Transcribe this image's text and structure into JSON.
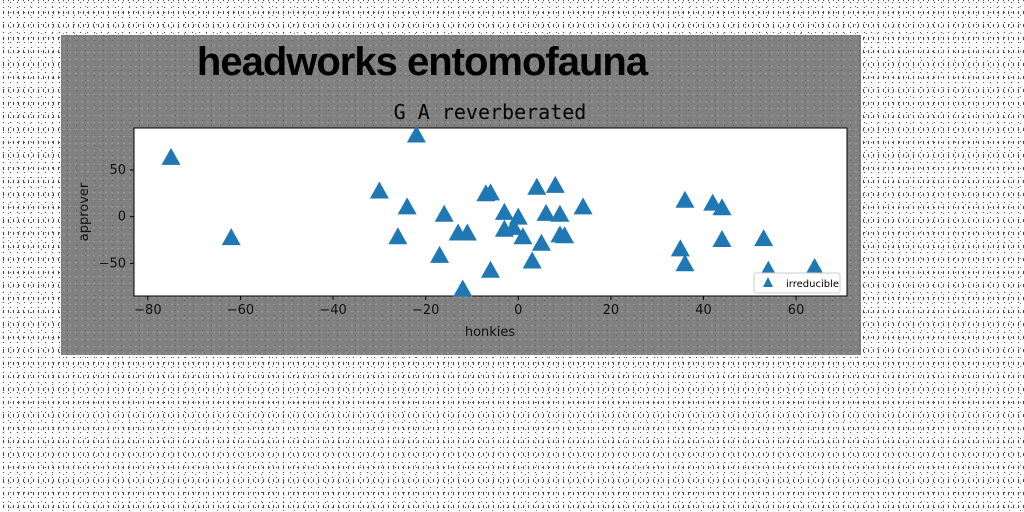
{
  "chart_data": {
    "type": "scatter",
    "suptitle": "headworks entomofauna",
    "title": "G A reverberated",
    "xlabel": "honkies",
    "ylabel": "approver",
    "xlim": [
      -83,
      71
    ],
    "ylim": [
      -85,
      95
    ],
    "xticks": [
      -80,
      -60,
      -40,
      -20,
      0,
      20,
      40,
      60
    ],
    "yticks": [
      -50,
      0,
      50
    ],
    "grid": false,
    "legend_position": "lower-right",
    "series": [
      {
        "name": "irreducible",
        "marker": "triangle",
        "color": "#1f77b4",
        "x": [
          -75,
          -62,
          -30,
          -26,
          -24,
          -22,
          -16,
          -17,
          -13,
          -11,
          -12,
          -7,
          -6,
          -6,
          -3,
          -3,
          -1,
          0,
          1,
          3,
          4,
          5,
          6,
          8,
          9,
          9,
          10,
          14,
          35,
          36,
          36,
          42,
          44,
          44,
          53,
          54,
          64
        ],
        "y": [
          63,
          -23,
          27,
          -22,
          10,
          87,
          2,
          -42,
          -18,
          -18,
          -78,
          24,
          -58,
          25,
          4,
          -14,
          -12,
          -1,
          -22,
          -48,
          31,
          -29,
          3,
          33,
          2,
          -20,
          -21,
          10,
          -35,
          -51,
          17,
          14,
          -25,
          9,
          -24,
          -58,
          -55
        ]
      }
    ]
  }
}
